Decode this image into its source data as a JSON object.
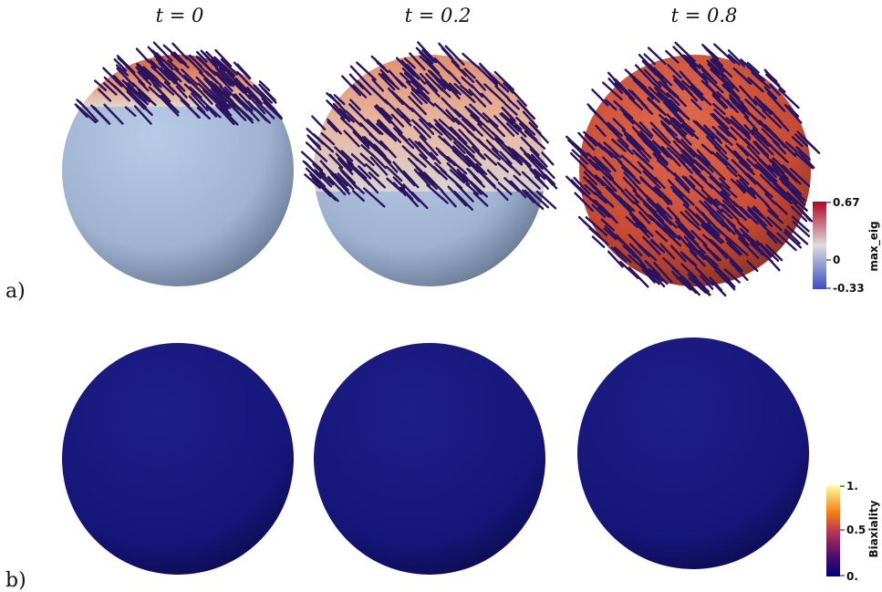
{
  "time_labels": [
    "t = 0",
    "t = 0.2",
    "t = 0.8"
  ],
  "panel_labels": {
    "a": "a)",
    "b": "b)"
  },
  "colorbar_top": {
    "title": "max_eig",
    "ticks": [
      "0.67",
      "0",
      "-0.33"
    ],
    "colors": [
      "#b40426",
      "#dddddd",
      "#3b4cc0"
    ]
  },
  "colorbar_bottom": {
    "title": "Biaxiality",
    "ticks": [
      "1.",
      "0.5",
      "0."
    ],
    "colors": [
      "#fcffa4",
      "#dd513a",
      "#932667",
      "#420a68",
      "#000080"
    ]
  },
  "palette": {
    "cold": "#aec3e0",
    "warm": "#d6553b",
    "director": "#2a1460",
    "biax": "#1a1a7e"
  }
}
